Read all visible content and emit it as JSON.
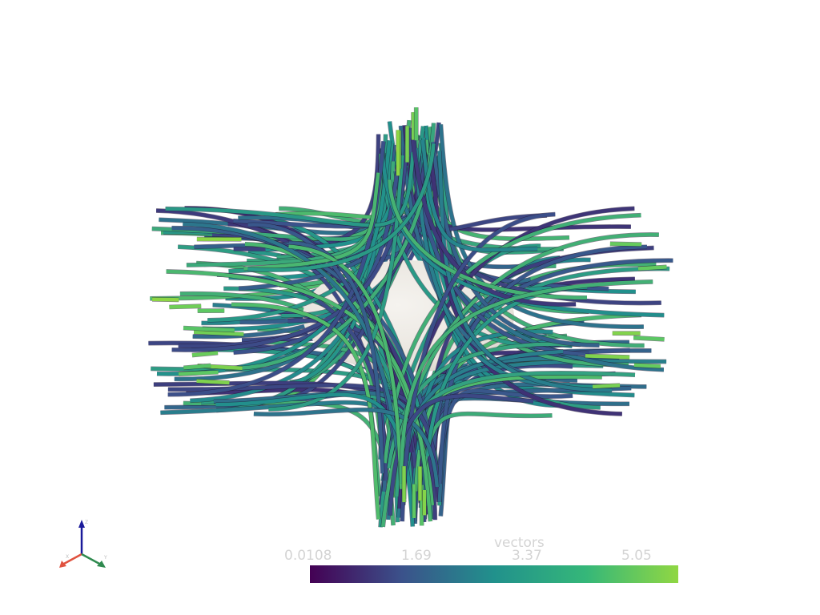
{
  "scene": {
    "object_icon": "streamline-tubes-around-sphere",
    "sphere_color": "#ece9e3",
    "background": "#ffffff"
  },
  "scalar_bar": {
    "title": "vectors",
    "ticks": [
      "0.0108",
      "1.69",
      "3.37",
      "5.05"
    ],
    "tick_values": [
      0.0108,
      1.69,
      3.37,
      5.05
    ],
    "range": [
      0.0108,
      5.7
    ],
    "colormap": "viridis",
    "colors": [
      "#440154",
      "#3b528b",
      "#21918c",
      "#5ec962",
      "#90d743"
    ]
  },
  "axes": {
    "x_label": "X",
    "y_label": "Y",
    "z_label": "Z",
    "x_color": "#e0523f",
    "y_color": "#2f8a4f",
    "z_color": "#1a1a9a"
  }
}
